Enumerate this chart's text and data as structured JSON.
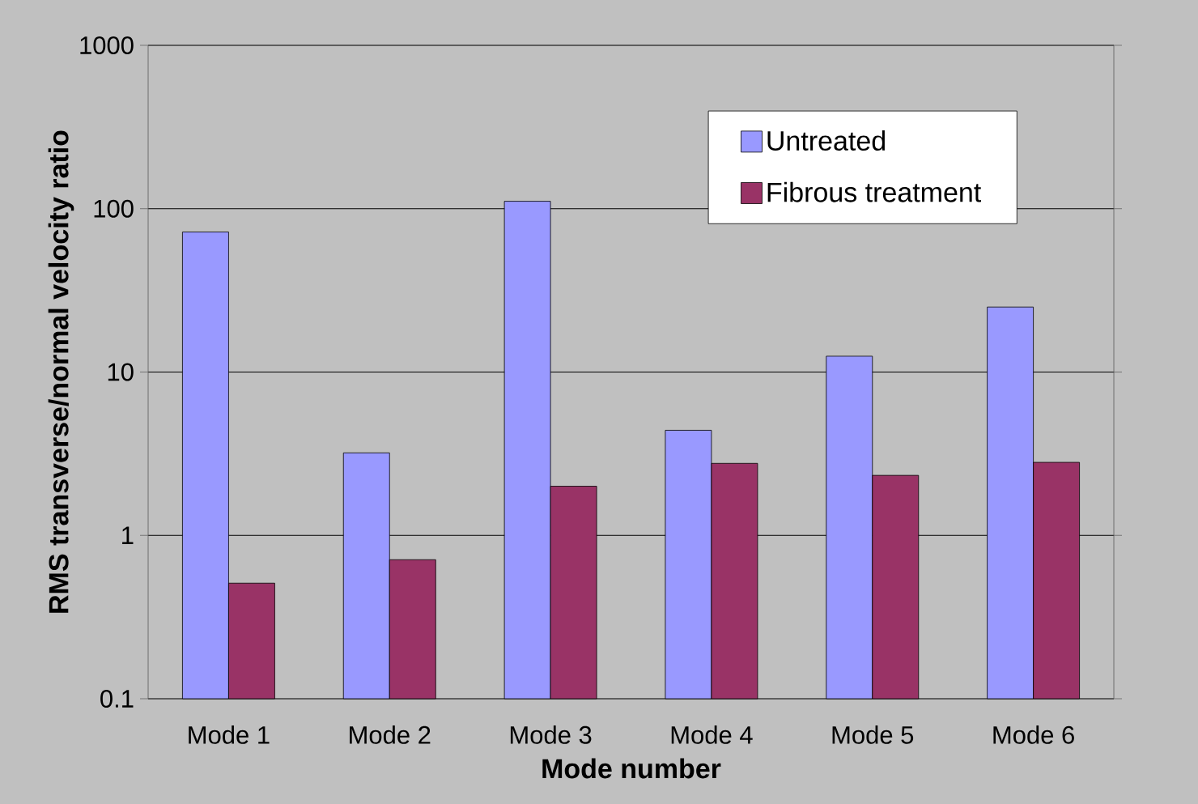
{
  "chart_data": {
    "type": "bar",
    "xlabel": "Mode number",
    "ylabel": "RMS transverse/normal velocity ratio",
    "categories": [
      "Mode 1",
      "Mode 2",
      "Mode 3",
      "Mode 4",
      "Mode 5",
      "Mode 6"
    ],
    "series": [
      {
        "name": "Untreated",
        "color": "#9999ff",
        "values": [
          72,
          3.2,
          111,
          4.4,
          12.5,
          25
        ]
      },
      {
        "name": "Fibrous treatment",
        "color": "#993366",
        "values": [
          0.51,
          0.71,
          2.0,
          2.76,
          2.33,
          2.8
        ]
      }
    ],
    "log": "y",
    "ylim": [
      0.1,
      1000
    ],
    "yticks": [
      0.1,
      1,
      10,
      100,
      1000
    ],
    "grid": "y",
    "legend": "top right"
  }
}
